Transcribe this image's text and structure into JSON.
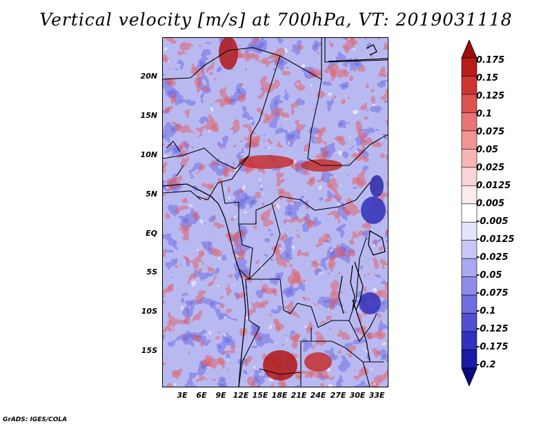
{
  "title": "Vertical velocity [m/s] at 700hPa, VT: 2019031118",
  "footer": "GrADS: IGES/COLA",
  "map": {
    "lat_labels": [
      "20N",
      "15N",
      "10N",
      "5N",
      "EQ",
      "5S",
      "10S",
      "15S"
    ],
    "lon_labels": [
      "3E",
      "6E",
      "9E",
      "12E",
      "15E",
      "18E",
      "21E",
      "24E",
      "27E",
      "30E",
      "33E"
    ]
  },
  "colorbar": {
    "levels": [
      "0.175",
      "0.15",
      "0.125",
      "0.1",
      "0.075",
      "0.05",
      "0.025",
      "0.0125",
      "0.005",
      "-0.005",
      "-0.0125",
      "-0.025",
      "-0.05",
      "-0.075",
      "-0.1",
      "-0.125",
      "-0.175",
      "-0.2"
    ],
    "colors": [
      "#9a0d0d",
      "#b81b1b",
      "#cf3434",
      "#de5252",
      "#e87474",
      "#f09494",
      "#f6b6b6",
      "#fbd5d5",
      "#fdeaea",
      "#ffffff",
      "#e4e4fc",
      "#c7c7f7",
      "#a9a9f1",
      "#8d8de9",
      "#6e6ede",
      "#5050d0",
      "#3131bd",
      "#1a1aa5",
      "#0a0a85"
    ]
  }
}
